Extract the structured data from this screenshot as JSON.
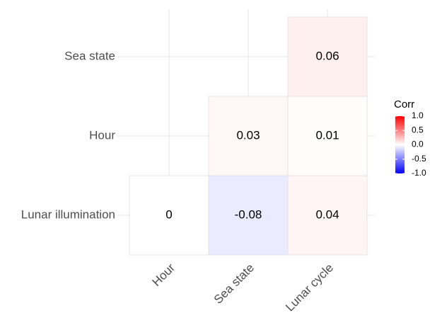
{
  "chart_data": {
    "type": "heatmap",
    "x_categories": [
      "Hour",
      "Sea state",
      "Lunar cycle"
    ],
    "y_categories": [
      "Lunar illumination",
      "Hour",
      "Sea state"
    ],
    "values": [
      [
        0,
        -0.08,
        0.04
      ],
      [
        null,
        0.03,
        0.01
      ],
      [
        null,
        null,
        0.06
      ]
    ],
    "legend_title": "Corr",
    "colors": {
      "low": "#0000ff",
      "mid": "#ffffff",
      "high": "#ff0000"
    },
    "clim": [
      -1,
      1
    ],
    "cticks": [
      {
        "value": 1,
        "label": "1.0"
      },
      {
        "value": 0.5,
        "label": "0.5"
      },
      {
        "value": 0,
        "label": "0.0"
      },
      {
        "value": -0.5,
        "label": "-0.5"
      },
      {
        "value": -1,
        "label": "-1.0"
      }
    ],
    "grid": true
  }
}
